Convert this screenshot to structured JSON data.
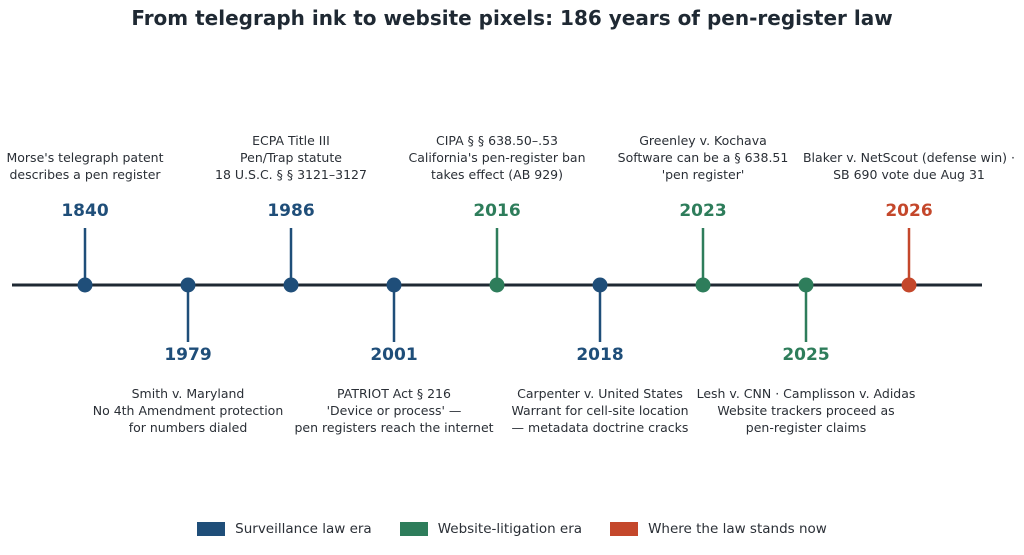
{
  "title": "From telegraph ink to website pixels: 186 years of pen-register law",
  "colors": {
    "surveillance": "#1f4e79",
    "website": "#2e7d5b",
    "now": "#c4472b",
    "axis": "#1f2933"
  },
  "events": [
    {
      "year": "1840",
      "era": "surveillance",
      "side": "above",
      "lines": [
        "Morse's telegraph patent",
        "describes a pen register"
      ]
    },
    {
      "year": "1979",
      "era": "surveillance",
      "side": "below",
      "lines": [
        "Smith v. Maryland",
        "No 4th Amendment protection",
        "for numbers dialed"
      ]
    },
    {
      "year": "1986",
      "era": "surveillance",
      "side": "above",
      "lines": [
        "ECPA Title III",
        "Pen/Trap statute",
        "18 U.S.C. § § 3121–3127"
      ]
    },
    {
      "year": "2001",
      "era": "surveillance",
      "side": "below",
      "lines": [
        "PATRIOT Act § 216",
        "'Device or process' —",
        "pen registers reach the internet"
      ]
    },
    {
      "year": "2016",
      "era": "website",
      "side": "above",
      "lines": [
        "CIPA § § 638.50–.53",
        "California's pen-register ban",
        "takes effect (AB 929)"
      ]
    },
    {
      "year": "2018",
      "era": "surveillance",
      "side": "below",
      "lines": [
        "Carpenter v. United States",
        "Warrant for cell-site location",
        "— metadata doctrine cracks"
      ]
    },
    {
      "year": "2023",
      "era": "website",
      "side": "above",
      "lines": [
        "Greenley v. Kochava",
        "Software can be a § 638.51",
        "'pen register'"
      ]
    },
    {
      "year": "2025",
      "era": "website",
      "side": "below",
      "lines": [
        "Lesh v. CNN · Camplisson v. Adidas",
        "Website trackers proceed as",
        "pen-register claims"
      ]
    },
    {
      "year": "2026",
      "era": "now",
      "side": "above",
      "lines": [
        "Blaker v. NetScout (defense win) ·",
        "SB 690 vote due Aug 31"
      ]
    }
  ],
  "legend": [
    {
      "label": "Surveillance law era",
      "era": "surveillance"
    },
    {
      "label": "Website-litigation era",
      "era": "website"
    },
    {
      "label": "Where the law stands now",
      "era": "now"
    }
  ]
}
